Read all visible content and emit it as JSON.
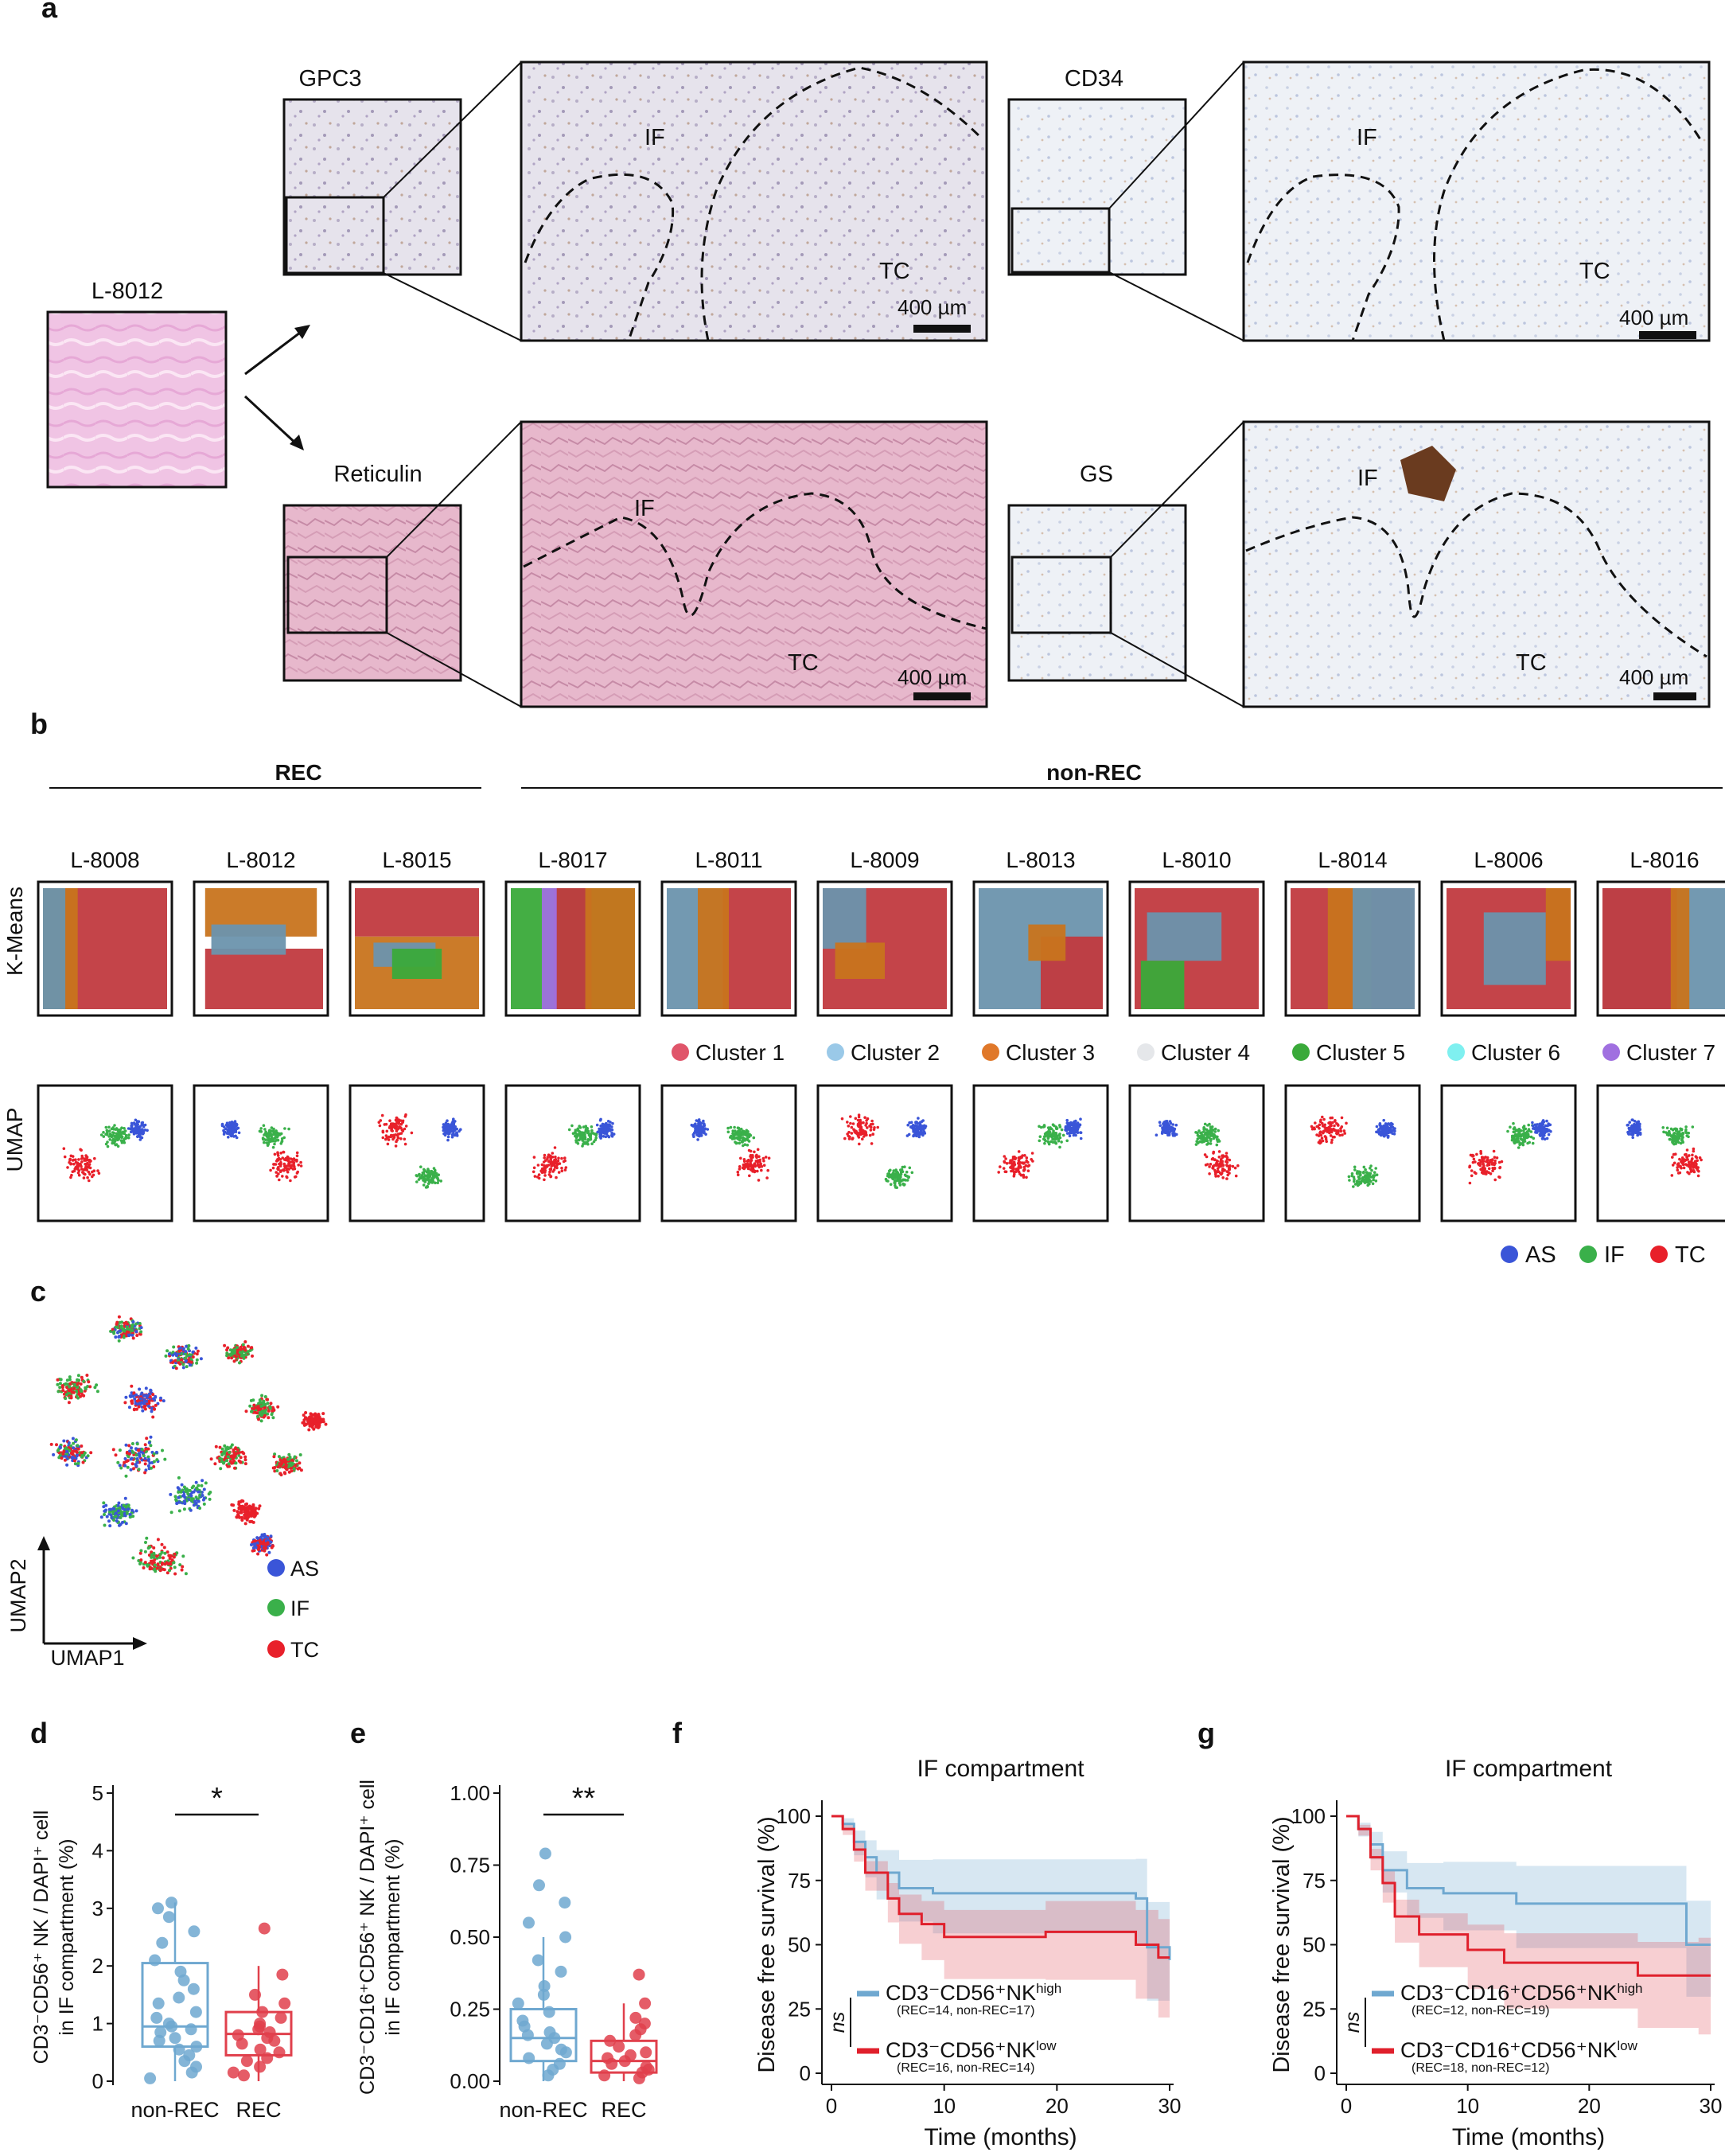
{
  "panel_letters": {
    "a": "a",
    "b": "b",
    "c": "c",
    "d": "d",
    "e": "e",
    "f": "f",
    "g": "g"
  },
  "panel_a": {
    "sample": "L-8012",
    "stains": [
      "GPC3",
      "CD34",
      "Reticulin",
      "GS"
    ],
    "region_if": "IF",
    "region_tc": "TC",
    "scale_bar": "400 µm"
  },
  "panel_b": {
    "group_rec": "REC",
    "group_nonrec": "non-REC",
    "samples": [
      "L-8008",
      "L-8012",
      "L-8015",
      "L-8017",
      "L-8011",
      "L-8009",
      "L-8013",
      "L-8010",
      "L-8014",
      "L-8006",
      "L-8016"
    ],
    "row_kmeans": "K-Means",
    "row_umap": "UMAP",
    "clusters": [
      {
        "name": "Cluster 1",
        "color": "#e0556a"
      },
      {
        "name": "Cluster 2",
        "color": "#9ac9e8"
      },
      {
        "name": "Cluster 3",
        "color": "#e0782a"
      },
      {
        "name": "Cluster 4",
        "color": "#e5e7ea"
      },
      {
        "name": "Cluster 5",
        "color": "#3aaa3a"
      },
      {
        "name": "Cluster 6",
        "color": "#7ff0f0"
      },
      {
        "name": "Cluster 7",
        "color": "#a070e0"
      }
    ],
    "compartments": [
      {
        "name": "AS",
        "color": "#3a55d8"
      },
      {
        "name": "IF",
        "color": "#3ab04a"
      },
      {
        "name": "TC",
        "color": "#e8202a"
      }
    ]
  },
  "panel_c": {
    "axis1": "UMAP1",
    "axis2": "UMAP2",
    "legend": [
      "AS",
      "IF",
      "TC"
    ]
  },
  "colors": {
    "nonrec": "#6fa8d0",
    "rec": "#e0404c",
    "km_red": "#c13a3f",
    "km_blue": "#6b93ad",
    "km_orange": "#c8741e"
  },
  "chart_data": [
    {
      "panel": "d",
      "type": "box",
      "ylabel_lines": [
        "CD3⁻CD56⁺ NK / DAPI⁺ cell",
        "in IF compartment (%)"
      ],
      "categories": [
        "non-REC",
        "REC"
      ],
      "ylim": [
        0,
        5
      ],
      "yticks": [
        "0",
        "1",
        "2",
        "3",
        "4",
        "5"
      ],
      "boxes": [
        {
          "name": "non-REC",
          "q1": 0.6,
          "median": 0.95,
          "q3": 2.05,
          "whisker_low": 0.0,
          "whisker_high": 3.1
        },
        {
          "name": "REC",
          "q1": 0.45,
          "median": 0.82,
          "q3": 1.2,
          "whisker_low": 0.0,
          "whisker_high": 2.0
        }
      ],
      "points": {
        "non-REC": [
          3.1,
          3.0,
          2.85,
          2.6,
          2.4,
          2.1,
          1.9,
          1.75,
          1.6,
          1.45,
          1.35,
          1.2,
          1.1,
          1.0,
          0.95,
          0.9,
          0.85,
          0.75,
          0.7,
          0.6,
          0.55,
          0.45,
          0.35,
          0.25,
          0.15,
          0.05
        ],
        "REC": [
          2.65,
          1.85,
          1.5,
          1.35,
          1.2,
          1.1,
          1.0,
          0.95,
          0.9,
          0.85,
          0.8,
          0.75,
          0.7,
          0.65,
          0.55,
          0.5,
          0.4,
          0.35,
          0.25,
          0.15,
          0.1
        ]
      },
      "significance": "*"
    },
    {
      "panel": "e",
      "type": "box",
      "ylabel_lines": [
        "CD3⁻CD16⁺CD56⁺ NK / DAPI⁺ cell",
        "in IF compartment (%)"
      ],
      "categories": [
        "non-REC",
        "REC"
      ],
      "ylim": [
        0,
        1.0
      ],
      "yticks": [
        "0.00",
        "0.25",
        "0.50",
        "0.75",
        "1.00"
      ],
      "boxes": [
        {
          "name": "non-REC",
          "q1": 0.07,
          "median": 0.15,
          "q3": 0.25,
          "whisker_low": 0.0,
          "whisker_high": 0.5
        },
        {
          "name": "REC",
          "q1": 0.03,
          "median": 0.07,
          "q3": 0.14,
          "whisker_low": 0.0,
          "whisker_high": 0.27
        }
      ],
      "points": {
        "non-REC": [
          0.79,
          0.68,
          0.62,
          0.55,
          0.5,
          0.42,
          0.38,
          0.33,
          0.3,
          0.27,
          0.24,
          0.21,
          0.19,
          0.17,
          0.16,
          0.15,
          0.13,
          0.11,
          0.1,
          0.08,
          0.06,
          0.04,
          0.02
        ],
        "REC": [
          0.37,
          0.27,
          0.22,
          0.2,
          0.18,
          0.16,
          0.14,
          0.12,
          0.1,
          0.09,
          0.08,
          0.07,
          0.06,
          0.05,
          0.04,
          0.03,
          0.02,
          0.01
        ]
      },
      "significance": "**"
    },
    {
      "panel": "f",
      "type": "line",
      "title": "IF compartment",
      "xlabel": "Time (months)",
      "ylabel": "Disease free survival (%)",
      "xlim": [
        0,
        30
      ],
      "ylim": [
        0,
        100
      ],
      "xticks": [
        "0",
        "10",
        "20",
        "30"
      ],
      "yticks": [
        "0",
        "25",
        "50",
        "75",
        "100"
      ],
      "series": [
        {
          "name": "CD3⁻CD56⁺NK",
          "sup": "high",
          "counts": "(REC=14, non-REC=17)",
          "color": "#6fa8d0",
          "x": [
            0,
            1,
            2,
            3,
            4,
            6,
            9,
            27,
            28,
            30
          ],
          "y": [
            100,
            97,
            90,
            84,
            78,
            72,
            70,
            68,
            49,
            44
          ]
        },
        {
          "name": "CD3⁻CD56⁺NK",
          "sup": "low",
          "counts": "(REC=16, non-REC=14)",
          "color": "#e0202c",
          "x": [
            0,
            1,
            2,
            3,
            5,
            6,
            8,
            10,
            19,
            27,
            29,
            30
          ],
          "y": [
            100,
            95,
            87,
            78,
            68,
            62,
            58,
            53,
            55,
            50,
            45,
            45
          ]
        }
      ],
      "annotation": "ns"
    },
    {
      "panel": "g",
      "type": "line",
      "title": "IF compartment",
      "xlabel": "Time (months)",
      "ylabel": "Disease free survival (%)",
      "xlim": [
        0,
        30
      ],
      "ylim": [
        0,
        100
      ],
      "xticks": [
        "0",
        "10",
        "20",
        "30"
      ],
      "yticks": [
        "0",
        "25",
        "50",
        "75",
        "100"
      ],
      "series": [
        {
          "name": "CD3⁻CD16⁺CD56⁺NK",
          "sup": "high",
          "counts": "(REC=12, non-REC=19)",
          "color": "#6fa8d0",
          "x": [
            0,
            1,
            2,
            3,
            5,
            8,
            14,
            28,
            30
          ],
          "y": [
            100,
            95,
            89,
            79,
            72,
            70,
            66,
            50,
            50
          ]
        },
        {
          "name": "CD3⁻CD16⁺CD56⁺NK",
          "sup": "low",
          "counts": "(REC=18, non-REC=12)",
          "color": "#e0202c",
          "x": [
            0,
            1,
            2,
            3,
            4,
            6,
            10,
            13,
            24,
            29,
            30
          ],
          "y": [
            100,
            95,
            84,
            74,
            61,
            54,
            48,
            43,
            38,
            38,
            38
          ]
        }
      ],
      "annotation": "ns"
    }
  ]
}
